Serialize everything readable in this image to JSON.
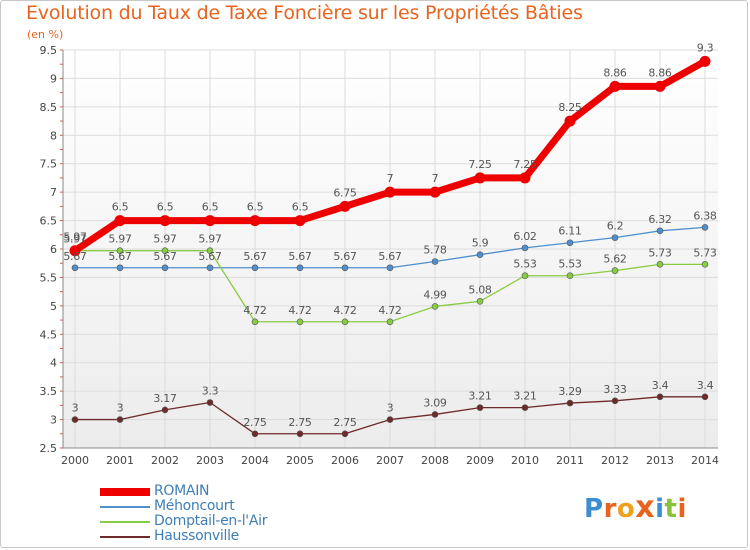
{
  "title": "Evolution du Taux de Taxe Foncière sur les Propriétés Bâties",
  "unit": "(en %)",
  "logo_text": "Proxiti",
  "chart_data": {
    "type": "line",
    "title": "Evolution du Taux de Taxe Foncière sur les Propriétés Bâties",
    "ylabel": "(en %)",
    "x": [
      2000,
      2001,
      2002,
      2003,
      2004,
      2005,
      2006,
      2007,
      2008,
      2009,
      2010,
      2011,
      2012,
      2013,
      2014
    ],
    "ylim": [
      2.5,
      9.5
    ],
    "yticks": [
      2.5,
      3,
      3.5,
      4,
      4.5,
      5,
      5.5,
      6,
      6.5,
      7,
      7.5,
      8,
      8.5,
      9,
      9.5
    ],
    "grid": true,
    "legend_position": "bottom-left",
    "series": [
      {
        "name": "ROMAIN",
        "color": "#ee0000",
        "values": [
          5.97,
          6.5,
          6.5,
          6.5,
          6.5,
          6.5,
          6.75,
          7,
          7,
          7.25,
          7.25,
          8.25,
          8.86,
          8.86,
          9.3
        ],
        "labels": [
          "5.97",
          "6.5",
          "6.5",
          "6.5",
          "6.5",
          "6.5",
          "6.75",
          "7",
          "7",
          "7.25",
          "7.25",
          "8.25",
          "8.86",
          "8.86",
          "9.3"
        ]
      },
      {
        "name": "Méhoncourt",
        "color": "#4f8fcc",
        "values": [
          5.67,
          5.67,
          5.67,
          5.67,
          5.67,
          5.67,
          5.67,
          5.67,
          5.78,
          5.9,
          6.02,
          6.11,
          6.2,
          6.32,
          6.38
        ],
        "labels": [
          "5.67",
          "5.67",
          "5.67",
          "5.67",
          "5.67",
          "5.67",
          "5.67",
          "5.67",
          "5.78",
          "5.9",
          "6.02",
          "6.11",
          "6.2",
          "6.32",
          "6.38"
        ]
      },
      {
        "name": "Domptail-en-l'Air",
        "color": "#88cc44",
        "values": [
          5.97,
          5.97,
          5.97,
          5.97,
          4.72,
          4.72,
          4.72,
          4.72,
          4.99,
          5.08,
          5.53,
          5.53,
          5.62,
          5.73,
          5.73
        ],
        "labels": [
          "5.97",
          "5.97",
          "5.97",
          "5.97",
          "4.72",
          "4.72",
          "4.72",
          "4.72",
          "4.99",
          "5.08",
          "5.53",
          "5.53",
          "5.62",
          "5.73",
          "5.73"
        ]
      },
      {
        "name": "Haussonville",
        "color": "#6e2a2a",
        "values": [
          3,
          3,
          3.17,
          3.3,
          2.75,
          2.75,
          2.75,
          3,
          3.09,
          3.21,
          3.21,
          3.29,
          3.33,
          3.4,
          3.4
        ],
        "labels": [
          "3",
          "3",
          "3.17",
          "3.3",
          "2.75",
          "2.75",
          "2.75",
          "3",
          "3.09",
          "3.21",
          "3.21",
          "3.29",
          "3.33",
          "3.4",
          "3.4"
        ]
      }
    ]
  }
}
